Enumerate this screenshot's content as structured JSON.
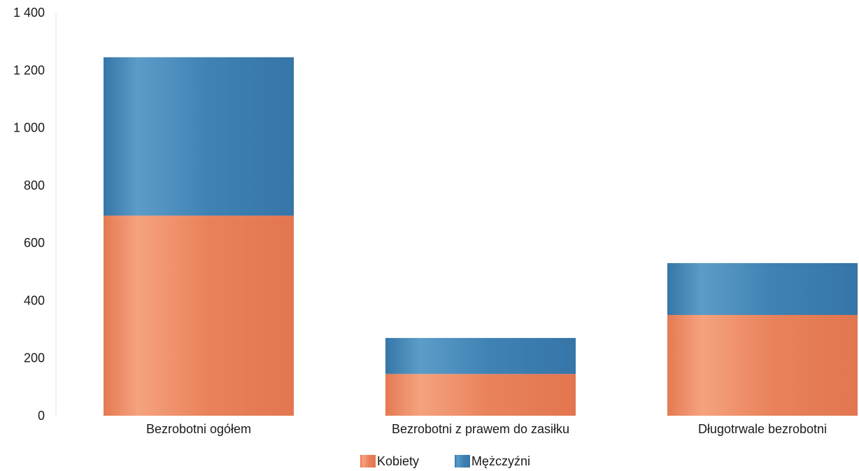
{
  "chart_data": {
    "type": "bar",
    "stacked": true,
    "categories": [
      "Bezrobotni ogółem",
      "Bezrobotni z prawem do zasiłku",
      "Długotrwale bezrobotni"
    ],
    "series": [
      {
        "name": "Kobiety",
        "values": [
          695,
          145,
          350
        ],
        "color": "#e9825a"
      },
      {
        "name": "Mężczyźni",
        "values": [
          550,
          125,
          180
        ],
        "color": "#3f82b4"
      }
    ],
    "yticks": [
      "0",
      "200",
      "400",
      "600",
      "800",
      "1 000",
      "1 200",
      "1 400"
    ],
    "ylim": [
      0,
      1400
    ],
    "grid": false,
    "legend": "bottom-center"
  }
}
